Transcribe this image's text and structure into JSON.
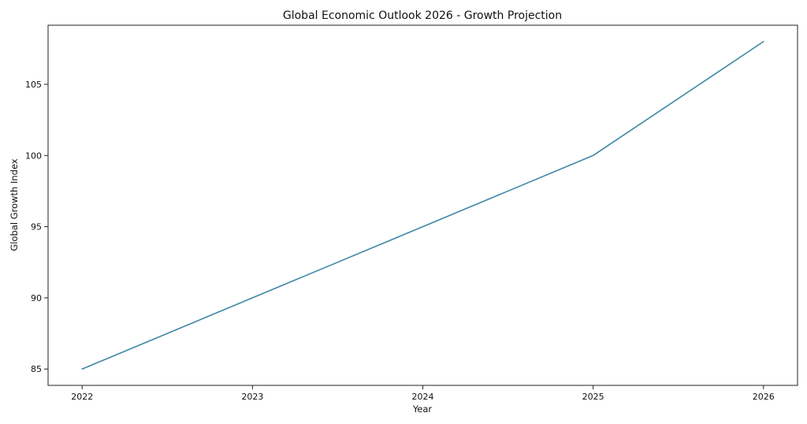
{
  "chart_data": {
    "type": "line",
    "title": "Global Economic Outlook 2026 - Growth Projection",
    "xlabel": "Year",
    "ylabel": "Global Growth Index",
    "x": [
      2022,
      2023,
      2024,
      2025,
      2026
    ],
    "x_tick_labels": [
      "2022",
      "2023",
      "2024",
      "2025",
      "2026"
    ],
    "y_ticks": [
      85,
      90,
      95,
      100,
      105
    ],
    "y_tick_labels": [
      "85",
      "90",
      "95",
      "100",
      "105"
    ],
    "xlim": [
      2021.8,
      2026.2
    ],
    "ylim": [
      83.85,
      109.15
    ],
    "grid": false,
    "legend": "none",
    "series": [
      {
        "values": [
          85,
          90,
          95,
          100,
          108
        ],
        "color": "#3f86a6"
      }
    ]
  }
}
